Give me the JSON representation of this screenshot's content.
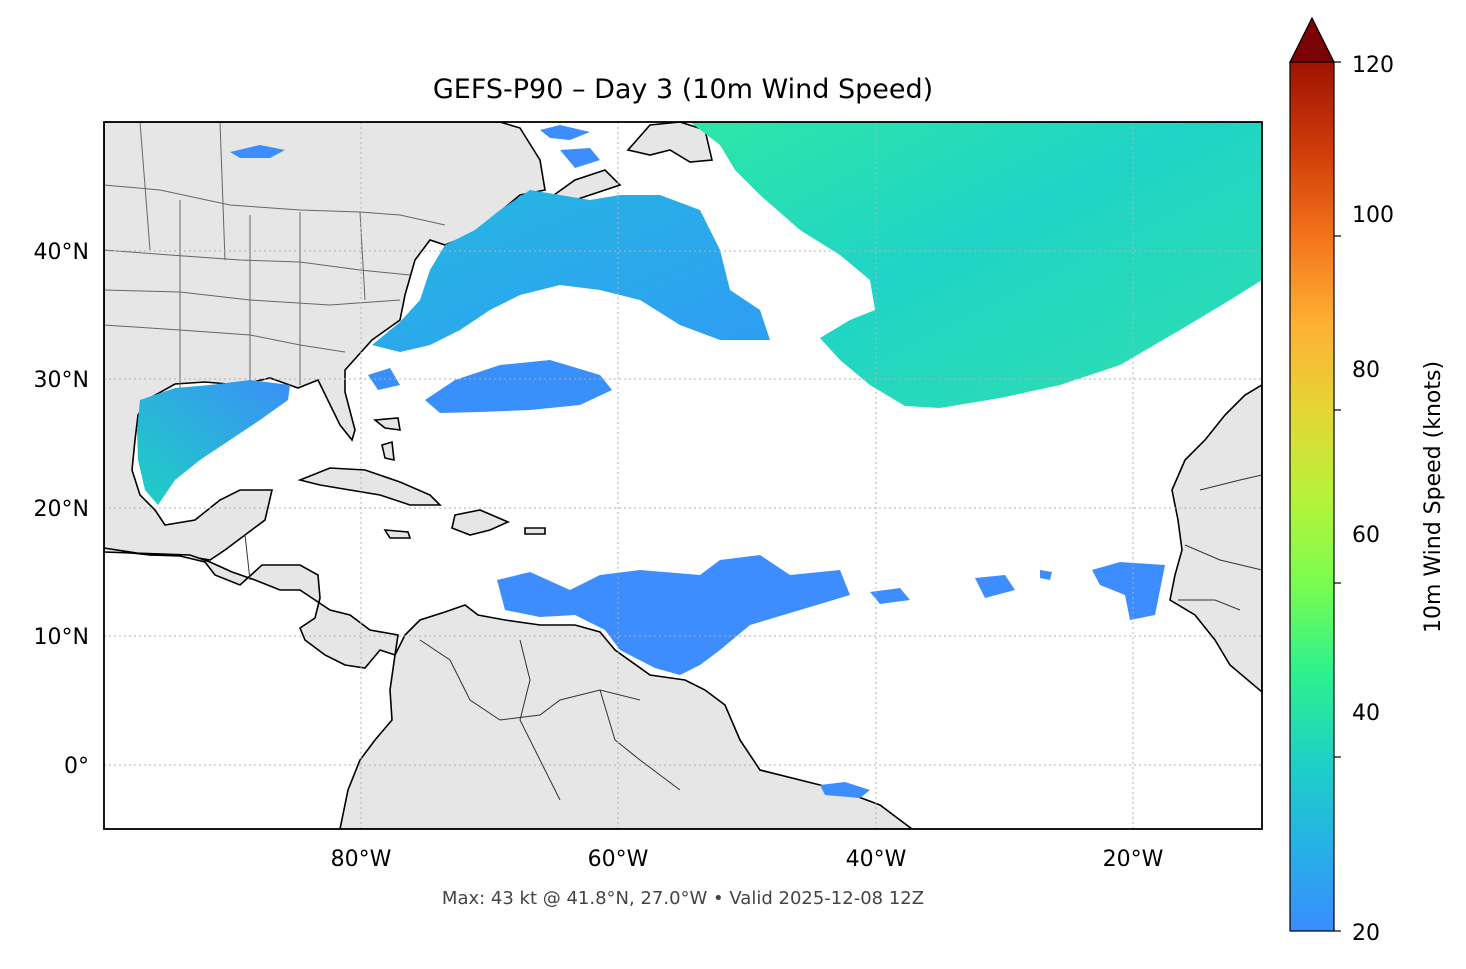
{
  "title": "GEFS-P90 – Day 3 (10m Wind Speed)",
  "footer": "Max: 43 kt @ 41.8°N, 27.0°W • Valid 2025-12-08 12Z",
  "map": {
    "lon_range": [
      -100,
      -10
    ],
    "lat_range": [
      -5,
      50
    ],
    "lon_ticks": [
      {
        "value": -80,
        "label": "80°W"
      },
      {
        "value": -60,
        "label": "60°W"
      },
      {
        "value": -40,
        "label": "40°W"
      },
      {
        "value": -20,
        "label": "20°W"
      }
    ],
    "lat_ticks": [
      {
        "value": 40,
        "label": "40°N"
      },
      {
        "value": 30,
        "label": "30°N"
      },
      {
        "value": 20,
        "label": "20°N"
      },
      {
        "value": 10,
        "label": "10°N"
      },
      {
        "value": 0,
        "label": "0°"
      }
    ],
    "gridlines": true,
    "land_color": "#e6e6e6",
    "ocean_color": "#ffffff"
  },
  "colorbar": {
    "label": "10m Wind Speed (knots)",
    "range": [
      20,
      120
    ],
    "extend": "max",
    "colormap": "turbo",
    "ticks": [
      {
        "value": 20,
        "label": "20"
      },
      {
        "value": 40,
        "label": "40"
      },
      {
        "value": 60,
        "label": "60"
      },
      {
        "value": 80,
        "label": "80"
      },
      {
        "value": 100,
        "label": "100"
      },
      {
        "value": 120,
        "label": "120"
      }
    ]
  },
  "wind_regions": [
    {
      "name": "north-atlantic-high",
      "value": 36
    },
    {
      "name": "us-east-coast",
      "value": 30
    },
    {
      "name": "gulf-of-mexico",
      "value": 30
    },
    {
      "name": "subtropical-atlantic",
      "value": 24
    },
    {
      "name": "tropical-atlantic",
      "value": 22
    }
  ]
}
